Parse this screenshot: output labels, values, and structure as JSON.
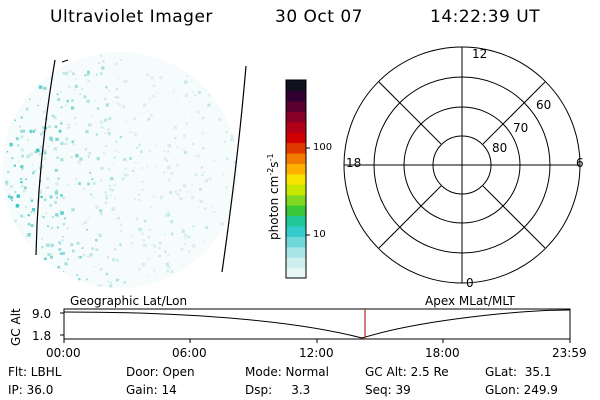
{
  "header": {
    "instrument": "Ultraviolet Imager",
    "date": "30 Oct 07",
    "time": "14:22:39 UT"
  },
  "colorbar": {
    "axis_label": "photon cm",
    "axis_exp1": "-2",
    "axis_mid": "s",
    "axis_exp2": "-1",
    "ticks": [
      "100",
      "10"
    ],
    "colors": [
      "#e8f6f6",
      "#cfeeee",
      "#a7e6e6",
      "#6fd8d8",
      "#36cccc",
      "#22c79a",
      "#38c838",
      "#80d820",
      "#c6e800",
      "#f6e400",
      "#ffb000",
      "#f07b00",
      "#e03a00",
      "#d00000",
      "#b00018",
      "#880028",
      "#5a002f",
      "#300030",
      "#101020"
    ]
  },
  "polar_plot": {
    "mlt_labels": {
      "top": "12",
      "left": "18",
      "right": "6",
      "bottom": "0"
    },
    "lat_labels": [
      "60",
      "70",
      "80"
    ]
  },
  "timeline": {
    "ylabel": "GC Alt",
    "y_ticks": [
      "9.0",
      "1.8"
    ],
    "left_title": "Geographic Lat/Lon",
    "right_title": "Apex MLat/MLT",
    "x_ticks": [
      "00:00",
      "06:00",
      "12:00",
      "18:00",
      "23:59"
    ]
  },
  "status": {
    "flt": "Flt: LBHL",
    "ip": "IP: 36.0",
    "door": "Door: Open",
    "gain": "Gain: 14",
    "mode": "Mode: Normal",
    "dsp": "Dsp:     3.3",
    "gcalt": "GC Alt: 2.5 Re",
    "seq": "Seq: 39",
    "glat": "GLat:  35.1",
    "glon": "GLon: 249.9"
  },
  "accent_colors": {
    "marker": "#b03020",
    "speckle": "#2ec8c8"
  }
}
